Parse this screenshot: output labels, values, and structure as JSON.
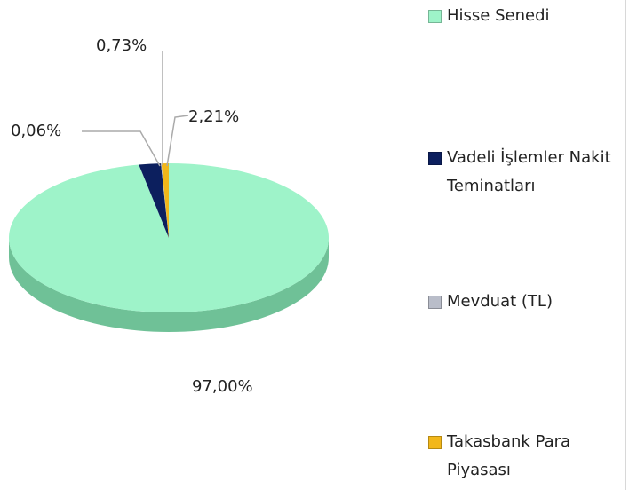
{
  "chart_data": {
    "type": "pie",
    "categories": [
      "Hisse Senedi",
      "Vadeli İşlemler Nakit Teminatları",
      "Mevduat (TL)",
      "Takasbank Para Piyasası"
    ],
    "values": [
      97.0,
      2.21,
      0.06,
      0.73
    ],
    "value_labels": [
      "97,00%",
      "2,21%",
      "0,06%",
      "0,73%"
    ],
    "colors": [
      "#9ef3c9",
      "#0c1f5e",
      "#b9bdc9",
      "#f2b71a"
    ]
  }
}
